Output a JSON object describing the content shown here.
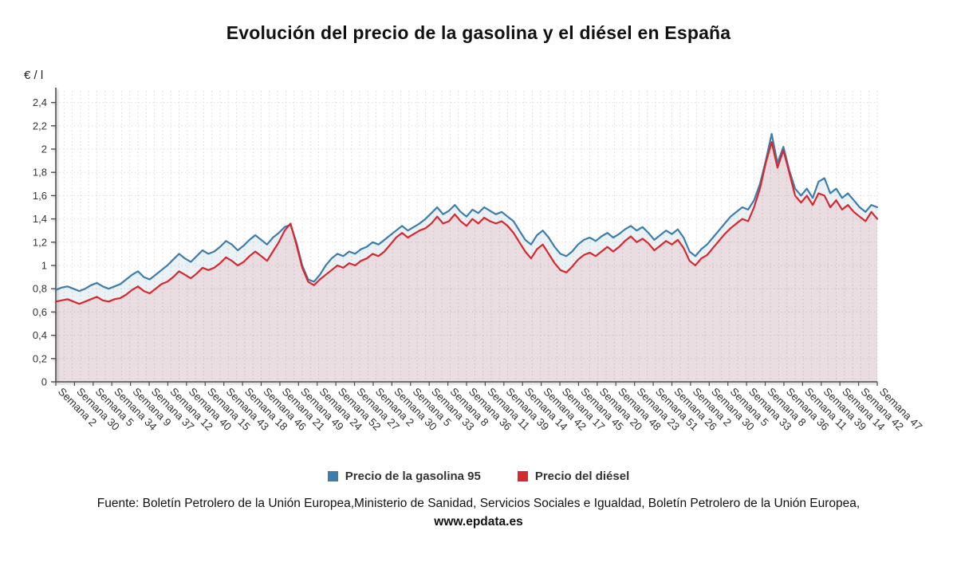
{
  "chart_data": {
    "type": "line",
    "title": "Evolución del precio de la gasolina y el diésel en España",
    "ylabel": "€ / l",
    "xlabel": "",
    "ylim": [
      0,
      2.5
    ],
    "y_tick_step": 0.2,
    "grid": "dashed",
    "legend_position": "bottom",
    "x_labels": [
      "Semana 2",
      "Semana 30",
      "Semana 5",
      "Semana 34",
      "Semana 9",
      "Semana 37",
      "Semana 12",
      "Semana 40",
      "Semana 15",
      "Semana 43",
      "Semana 18",
      "Semana 46",
      "Semana 21",
      "Semana 49",
      "Semana 24",
      "Semana 52",
      "Semana 27",
      "Semana 2",
      "Semana 30",
      "Semana 5",
      "Semana 33",
      "Semana 8",
      "Semana 36",
      "Semana 11",
      "Semana 39",
      "Semana 14",
      "Semana 42",
      "Semana 17",
      "Semana 45",
      "Semana 20",
      "Semana 48",
      "Semana 23",
      "Semana 51",
      "Semana 26",
      "Semana 2",
      "Semana 30",
      "Semana 5",
      "Semana 33",
      "Semana 8",
      "Semana 36",
      "Semana 11",
      "Semana 39",
      "Semana 14",
      "Semana 42",
      "Semana 47"
    ],
    "series": [
      {
        "name": "Precio de la gasolina 95",
        "color": "#3e7cab",
        "fill": "rgba(62,124,171,0.10)",
        "values": [
          0.79,
          0.81,
          0.82,
          0.8,
          0.78,
          0.8,
          0.83,
          0.85,
          0.82,
          0.8,
          0.82,
          0.84,
          0.88,
          0.92,
          0.95,
          0.9,
          0.88,
          0.92,
          0.96,
          1.0,
          1.05,
          1.1,
          1.06,
          1.03,
          1.08,
          1.13,
          1.1,
          1.12,
          1.16,
          1.21,
          1.18,
          1.13,
          1.17,
          1.22,
          1.26,
          1.22,
          1.18,
          1.24,
          1.28,
          1.33,
          1.35,
          1.2,
          1.0,
          0.88,
          0.86,
          0.92,
          1.0,
          1.06,
          1.1,
          1.08,
          1.12,
          1.1,
          1.14,
          1.16,
          1.2,
          1.18,
          1.22,
          1.26,
          1.3,
          1.34,
          1.3,
          1.33,
          1.36,
          1.4,
          1.45,
          1.5,
          1.44,
          1.47,
          1.52,
          1.46,
          1.42,
          1.48,
          1.45,
          1.5,
          1.47,
          1.44,
          1.46,
          1.42,
          1.38,
          1.3,
          1.22,
          1.18,
          1.26,
          1.3,
          1.24,
          1.16,
          1.1,
          1.08,
          1.12,
          1.18,
          1.22,
          1.24,
          1.21,
          1.25,
          1.28,
          1.24,
          1.27,
          1.31,
          1.34,
          1.3,
          1.33,
          1.28,
          1.22,
          1.26,
          1.3,
          1.27,
          1.31,
          1.24,
          1.12,
          1.08,
          1.14,
          1.18,
          1.24,
          1.3,
          1.36,
          1.42,
          1.46,
          1.5,
          1.48,
          1.56,
          1.7,
          1.9,
          2.13,
          1.88,
          2.02,
          1.82,
          1.66,
          1.6,
          1.66,
          1.58,
          1.72,
          1.75,
          1.62,
          1.66,
          1.58,
          1.62,
          1.56,
          1.5,
          1.46,
          1.52,
          1.5
        ]
      },
      {
        "name": "Precio del diésel",
        "color": "#d7282f",
        "fill": "rgba(215,40,47,0.10)",
        "values": [
          0.69,
          0.7,
          0.71,
          0.69,
          0.67,
          0.69,
          0.71,
          0.73,
          0.7,
          0.69,
          0.71,
          0.72,
          0.75,
          0.79,
          0.82,
          0.78,
          0.76,
          0.8,
          0.84,
          0.86,
          0.9,
          0.95,
          0.92,
          0.89,
          0.93,
          0.98,
          0.96,
          0.98,
          1.02,
          1.07,
          1.04,
          1.0,
          1.03,
          1.08,
          1.12,
          1.08,
          1.04,
          1.12,
          1.2,
          1.3,
          1.36,
          1.18,
          0.98,
          0.86,
          0.83,
          0.88,
          0.92,
          0.96,
          1.0,
          0.98,
          1.02,
          1.0,
          1.04,
          1.06,
          1.1,
          1.08,
          1.12,
          1.18,
          1.24,
          1.28,
          1.24,
          1.27,
          1.3,
          1.32,
          1.36,
          1.42,
          1.36,
          1.38,
          1.44,
          1.38,
          1.34,
          1.4,
          1.36,
          1.41,
          1.38,
          1.36,
          1.38,
          1.34,
          1.28,
          1.2,
          1.12,
          1.06,
          1.14,
          1.18,
          1.1,
          1.02,
          0.96,
          0.94,
          0.99,
          1.05,
          1.09,
          1.11,
          1.08,
          1.12,
          1.16,
          1.12,
          1.16,
          1.21,
          1.25,
          1.2,
          1.23,
          1.19,
          1.13,
          1.17,
          1.21,
          1.18,
          1.22,
          1.15,
          1.04,
          1.0,
          1.06,
          1.09,
          1.15,
          1.21,
          1.27,
          1.32,
          1.36,
          1.4,
          1.38,
          1.5,
          1.66,
          1.88,
          2.06,
          1.84,
          1.99,
          1.8,
          1.6,
          1.54,
          1.6,
          1.52,
          1.62,
          1.6,
          1.5,
          1.56,
          1.48,
          1.52,
          1.46,
          1.42,
          1.38,
          1.46,
          1.4
        ]
      }
    ]
  },
  "footer": {
    "text": "Fuente: Boletín Petrolero de la Unión Europea,Ministerio de Sanidad, Servicios Sociales e Igualdad, Boletín Petrolero de la Unión Europea, ",
    "link": "www.epdata.es"
  }
}
